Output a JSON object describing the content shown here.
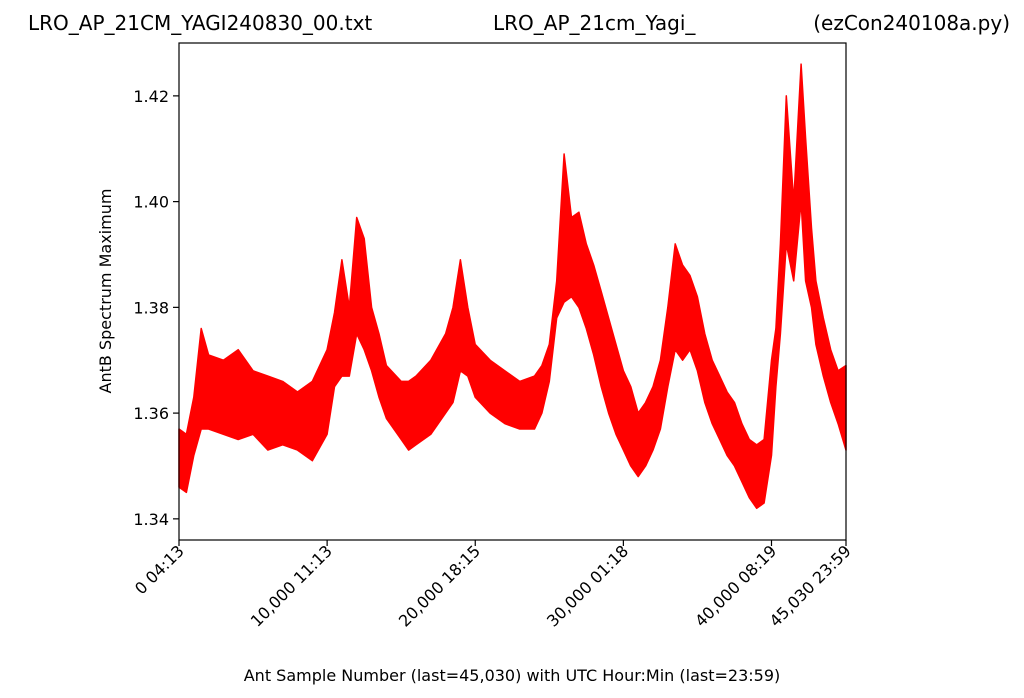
{
  "chart_data": {
    "type": "line",
    "title_left": "LRO_AP_21CM_YAGI240830_00.txt",
    "title_center": "LRO_AP_21cm_Yagi_",
    "title_right": "(ezCon240108a.py)",
    "xlabel": "Ant Sample Number (last=45,030) with UTC Hour:Min (last=23:59)",
    "ylabel": "AntB Spectrum Maximum",
    "xlim": [
      0,
      45030
    ],
    "ylim": [
      1.336,
      1.43
    ],
    "grid": false,
    "line_color": "#ff0000",
    "y_ticks": [
      {
        "value": 1.34,
        "label": "1.34"
      },
      {
        "value": 1.36,
        "label": "1.36"
      },
      {
        "value": 1.38,
        "label": "1.38"
      },
      {
        "value": 1.4,
        "label": "1.40"
      },
      {
        "value": 1.42,
        "label": "1.42"
      }
    ],
    "x_ticks": [
      {
        "value": 0,
        "label": "0  04:13"
      },
      {
        "value": 10000,
        "label": "10,000  11:13"
      },
      {
        "value": 20000,
        "label": "20,000  18:15"
      },
      {
        "value": 30000,
        "label": "30,000  01:18"
      },
      {
        "value": 40000,
        "label": "40,000  08:19"
      },
      {
        "value": 45030,
        "label": "45,030  23:59"
      }
    ],
    "series": [
      {
        "lower": [
          [
            0,
            1.346
          ],
          [
            500,
            1.345
          ],
          [
            1000,
            1.352
          ],
          [
            1500,
            1.357
          ],
          [
            2000,
            1.357
          ],
          [
            3000,
            1.356
          ],
          [
            4000,
            1.355
          ],
          [
            5000,
            1.356
          ],
          [
            6000,
            1.353
          ],
          [
            7000,
            1.354
          ],
          [
            8000,
            1.353
          ],
          [
            9000,
            1.351
          ],
          [
            10000,
            1.356
          ],
          [
            10500,
            1.365
          ],
          [
            11000,
            1.367
          ],
          [
            11500,
            1.367
          ],
          [
            12000,
            1.375
          ],
          [
            12500,
            1.372
          ],
          [
            13000,
            1.368
          ],
          [
            13500,
            1.363
          ],
          [
            14000,
            1.359
          ],
          [
            15000,
            1.355
          ],
          [
            15500,
            1.353
          ],
          [
            16000,
            1.354
          ],
          [
            17000,
            1.356
          ],
          [
            18000,
            1.36
          ],
          [
            18500,
            1.362
          ],
          [
            19000,
            1.368
          ],
          [
            19500,
            1.367
          ],
          [
            20000,
            1.363
          ],
          [
            21000,
            1.36
          ],
          [
            22000,
            1.358
          ],
          [
            23000,
            1.357
          ],
          [
            24000,
            1.357
          ],
          [
            24500,
            1.36
          ],
          [
            25000,
            1.366
          ],
          [
            25500,
            1.378
          ],
          [
            26000,
            1.381
          ],
          [
            26500,
            1.382
          ],
          [
            27000,
            1.38
          ],
          [
            27500,
            1.376
          ],
          [
            28000,
            1.371
          ],
          [
            28500,
            1.365
          ],
          [
            29000,
            1.36
          ],
          [
            29500,
            1.356
          ],
          [
            30000,
            1.353
          ],
          [
            30500,
            1.35
          ],
          [
            31000,
            1.348
          ],
          [
            31500,
            1.35
          ],
          [
            32000,
            1.353
          ],
          [
            32500,
            1.357
          ],
          [
            33000,
            1.365
          ],
          [
            33500,
            1.372
          ],
          [
            34000,
            1.37
          ],
          [
            34500,
            1.372
          ],
          [
            35000,
            1.368
          ],
          [
            35500,
            1.362
          ],
          [
            36000,
            1.358
          ],
          [
            36500,
            1.355
          ],
          [
            37000,
            1.352
          ],
          [
            37500,
            1.35
          ],
          [
            38000,
            1.347
          ],
          [
            38500,
            1.344
          ],
          [
            39000,
            1.342
          ],
          [
            39500,
            1.343
          ],
          [
            40000,
            1.352
          ],
          [
            40300,
            1.365
          ],
          [
            40600,
            1.375
          ],
          [
            41000,
            1.392
          ],
          [
            41500,
            1.385
          ],
          [
            42000,
            1.4
          ],
          [
            42300,
            1.385
          ],
          [
            42700,
            1.38
          ],
          [
            43000,
            1.373
          ],
          [
            43500,
            1.367
          ],
          [
            44000,
            1.362
          ],
          [
            44500,
            1.358
          ],
          [
            45030,
            1.353
          ]
        ],
        "upper": [
          [
            0,
            1.357
          ],
          [
            500,
            1.356
          ],
          [
            1000,
            1.363
          ],
          [
            1500,
            1.376
          ],
          [
            2000,
            1.371
          ],
          [
            3000,
            1.37
          ],
          [
            4000,
            1.372
          ],
          [
            5000,
            1.368
          ],
          [
            6000,
            1.367
          ],
          [
            7000,
            1.366
          ],
          [
            8000,
            1.364
          ],
          [
            9000,
            1.366
          ],
          [
            10000,
            1.372
          ],
          [
            10500,
            1.379
          ],
          [
            11000,
            1.389
          ],
          [
            11500,
            1.38
          ],
          [
            12000,
            1.397
          ],
          [
            12500,
            1.393
          ],
          [
            13000,
            1.38
          ],
          [
            13500,
            1.375
          ],
          [
            14000,
            1.369
          ],
          [
            15000,
            1.366
          ],
          [
            15500,
            1.366
          ],
          [
            16000,
            1.367
          ],
          [
            17000,
            1.37
          ],
          [
            18000,
            1.375
          ],
          [
            18500,
            1.38
          ],
          [
            19000,
            1.389
          ],
          [
            19500,
            1.38
          ],
          [
            20000,
            1.373
          ],
          [
            21000,
            1.37
          ],
          [
            22000,
            1.368
          ],
          [
            23000,
            1.366
          ],
          [
            24000,
            1.367
          ],
          [
            24500,
            1.369
          ],
          [
            25000,
            1.373
          ],
          [
            25500,
            1.385
          ],
          [
            26000,
            1.409
          ],
          [
            26500,
            1.397
          ],
          [
            27000,
            1.398
          ],
          [
            27500,
            1.392
          ],
          [
            28000,
            1.388
          ],
          [
            28500,
            1.383
          ],
          [
            29000,
            1.378
          ],
          [
            29500,
            1.373
          ],
          [
            30000,
            1.368
          ],
          [
            30500,
            1.365
          ],
          [
            31000,
            1.36
          ],
          [
            31500,
            1.362
          ],
          [
            32000,
            1.365
          ],
          [
            32500,
            1.37
          ],
          [
            33000,
            1.38
          ],
          [
            33500,
            1.392
          ],
          [
            34000,
            1.388
          ],
          [
            34500,
            1.386
          ],
          [
            35000,
            1.382
          ],
          [
            35500,
            1.375
          ],
          [
            36000,
            1.37
          ],
          [
            36500,
            1.367
          ],
          [
            37000,
            1.364
          ],
          [
            37500,
            1.362
          ],
          [
            38000,
            1.358
          ],
          [
            38500,
            1.355
          ],
          [
            39000,
            1.354
          ],
          [
            39500,
            1.355
          ],
          [
            40000,
            1.37
          ],
          [
            40300,
            1.376
          ],
          [
            40600,
            1.392
          ],
          [
            41000,
            1.42
          ],
          [
            41500,
            1.4
          ],
          [
            42000,
            1.426
          ],
          [
            42300,
            1.412
          ],
          [
            42700,
            1.395
          ],
          [
            43000,
            1.385
          ],
          [
            43500,
            1.378
          ],
          [
            44000,
            1.372
          ],
          [
            44500,
            1.368
          ],
          [
            45030,
            1.369
          ]
        ]
      }
    ]
  }
}
